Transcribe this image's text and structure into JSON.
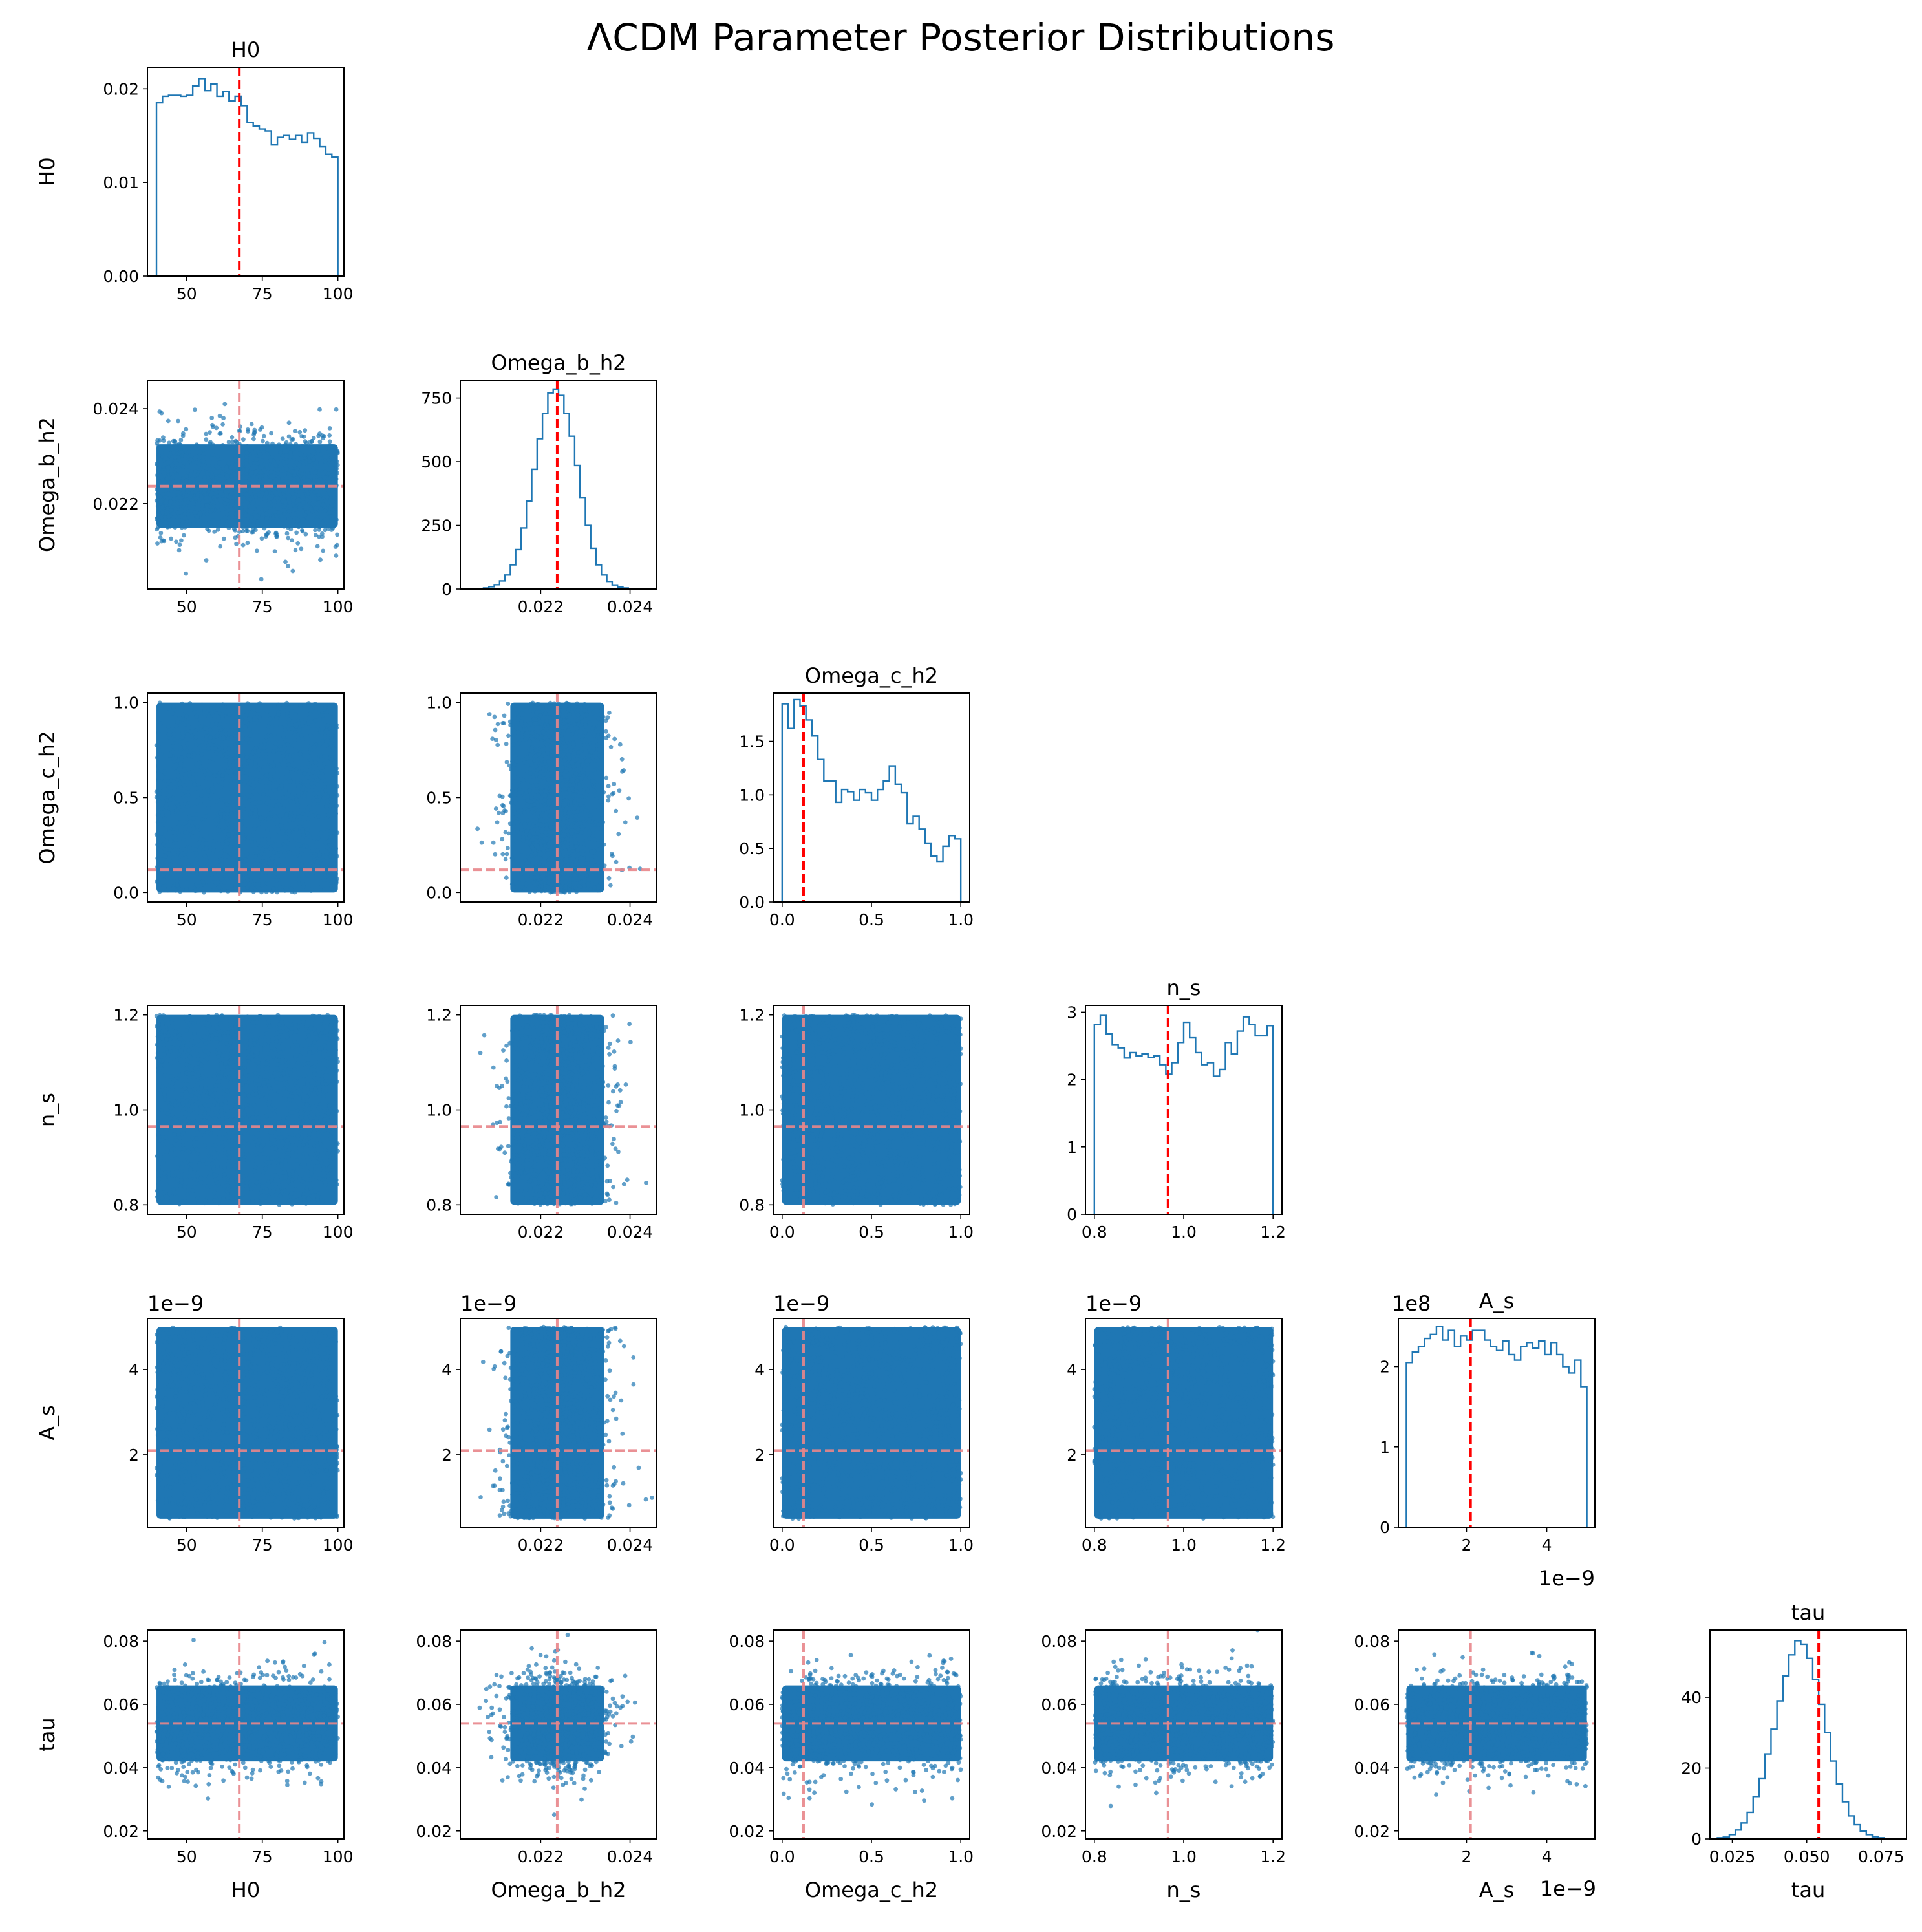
{
  "title": "ΛCDM Parameter Posterior Distributions",
  "colors": {
    "primary": "#1f77b4",
    "reference": "#ff0000",
    "reference_faint": "#e8868a",
    "axes": "#000000",
    "background": "#ffffff"
  },
  "chart_data": {
    "type": "scatter",
    "layout": "corner-plot",
    "title": "ΛCDM Parameter Posterior Distributions",
    "grid": false,
    "parameters": [
      {
        "name": "H0",
        "range": [
          37,
          102
        ],
        "ticks": [
          50,
          75,
          100
        ],
        "tick_labels": [
          "50",
          "75",
          "100"
        ],
        "offset": "",
        "reference": 67.4,
        "sample_range": [
          40,
          100
        ]
      },
      {
        "name": "Omega_b_h2",
        "range": [
          0.0202,
          0.0246
        ],
        "ticks": [
          0.022,
          0.024
        ],
        "tick_labels": [
          "0.022",
          "0.024"
        ],
        "offset": "",
        "reference": 0.02237,
        "sample_range": [
          0.0207,
          0.0241
        ]
      },
      {
        "name": "Omega_c_h2",
        "range": [
          -0.05,
          1.05
        ],
        "ticks": [
          0.0,
          0.5,
          1.0
        ],
        "tick_labels": [
          "0.0",
          "0.5",
          "1.0"
        ],
        "offset": "",
        "reference": 0.12,
        "sample_range": [
          0.0,
          1.0
        ]
      },
      {
        "name": "n_s",
        "range": [
          0.78,
          1.22
        ],
        "ticks": [
          0.8,
          1.0,
          1.2
        ],
        "tick_labels": [
          "0.8",
          "1.0",
          "1.2"
        ],
        "offset": "",
        "reference": 0.965,
        "sample_range": [
          0.8,
          1.2
        ]
      },
      {
        "name": "A_s",
        "range": [
          0.3,
          5.2
        ],
        "ticks": [
          2,
          4
        ],
        "tick_labels": [
          "2",
          "4"
        ],
        "offset": "1e−9",
        "reference": 2.1,
        "sample_range": [
          0.5,
          5.0
        ]
      },
      {
        "name": "tau",
        "range": [
          0.0175,
          0.0835
        ],
        "ticks": [
          0.025,
          0.05,
          0.075
        ],
        "tick_labels": [
          "0.025",
          "0.050",
          "0.075"
        ],
        "y_ticks": [
          0.02,
          0.04,
          0.06,
          0.08
        ],
        "y_tick_labels": [
          "0.02",
          "0.04",
          "0.06",
          "0.08"
        ],
        "offset": "",
        "reference": 0.054,
        "sample_range": [
          0.02,
          0.08
        ]
      }
    ],
    "diagonal_histograms": [
      {
        "parameter": "H0",
        "ylim": [
          0,
          0.0223
        ],
        "yticks": [
          0.0,
          0.01,
          0.02
        ],
        "ytick_labels": [
          "0.00",
          "0.01",
          "0.02"
        ],
        "yoffset": "",
        "edges": [
          40,
          42,
          44,
          46,
          48,
          50,
          52,
          54,
          56,
          58,
          60,
          62,
          64,
          66,
          68,
          70,
          72,
          74,
          76,
          78,
          80,
          82,
          84,
          86,
          88,
          90,
          92,
          94,
          96,
          98,
          100
        ],
        "values": [
          0.0185,
          0.0192,
          0.0193,
          0.0193,
          0.0192,
          0.0193,
          0.0203,
          0.0211,
          0.0198,
          0.0205,
          0.0192,
          0.0197,
          0.0187,
          0.0192,
          0.0182,
          0.0164,
          0.016,
          0.0157,
          0.0155,
          0.014,
          0.0148,
          0.015,
          0.0146,
          0.015,
          0.0143,
          0.0153,
          0.0147,
          0.0138,
          0.013,
          0.0127
        ]
      },
      {
        "parameter": "Omega_b_h2",
        "ylim": [
          0,
          820
        ],
        "yticks": [
          0,
          250,
          500,
          750
        ],
        "ytick_labels": [
          "0",
          "250",
          "500",
          "750"
        ],
        "yoffset": "",
        "edges": [
          0.0206,
          0.02072,
          0.02084,
          0.02096,
          0.02108,
          0.0212,
          0.02132,
          0.02144,
          0.02156,
          0.02168,
          0.0218,
          0.02192,
          0.02204,
          0.02216,
          0.02228,
          0.0224,
          0.02252,
          0.02264,
          0.02276,
          0.02288,
          0.023,
          0.02312,
          0.02324,
          0.02336,
          0.02348,
          0.0236,
          0.02372,
          0.02384,
          0.02396,
          0.02408,
          0.0242
        ],
        "values": [
          2,
          4,
          9,
          17,
          32,
          55,
          95,
          155,
          240,
          345,
          470,
          590,
          690,
          770,
          785,
          760,
          690,
          600,
          485,
          360,
          250,
          160,
          95,
          55,
          30,
          16,
          8,
          4,
          2,
          1
        ]
      },
      {
        "parameter": "Omega_c_h2",
        "ylim": [
          0,
          1.95
        ],
        "yticks": [
          0.0,
          0.5,
          1.0,
          1.5
        ],
        "ytick_labels": [
          "0.0",
          "0.5",
          "1.0",
          "1.5"
        ],
        "yoffset": "",
        "edges": [
          0.0,
          0.03333,
          0.06667,
          0.1,
          0.13333,
          0.16667,
          0.2,
          0.23333,
          0.26667,
          0.3,
          0.33333,
          0.36667,
          0.4,
          0.43333,
          0.46667,
          0.5,
          0.53333,
          0.56667,
          0.6,
          0.63333,
          0.66667,
          0.7,
          0.73333,
          0.76667,
          0.8,
          0.83333,
          0.86667,
          0.9,
          0.93333,
          0.96667,
          1.0
        ],
        "values": [
          1.85,
          1.62,
          1.89,
          1.83,
          1.7,
          1.55,
          1.33,
          1.13,
          1.13,
          0.93,
          1.05,
          1.03,
          0.95,
          1.05,
          1.02,
          0.95,
          1.05,
          1.13,
          1.27,
          1.1,
          1.02,
          0.73,
          0.8,
          0.68,
          0.55,
          0.43,
          0.38,
          0.52,
          0.62,
          0.59
        ]
      },
      {
        "parameter": "n_s",
        "ylim": [
          0,
          3.1
        ],
        "yticks": [
          0,
          1,
          2,
          3
        ],
        "ytick_labels": [
          "0",
          "1",
          "2",
          "3"
        ],
        "yoffset": "",
        "edges": [
          0.8,
          0.81333,
          0.82667,
          0.84,
          0.85333,
          0.86667,
          0.88,
          0.89333,
          0.90667,
          0.92,
          0.93333,
          0.94667,
          0.96,
          0.97333,
          0.98667,
          1.0,
          1.01333,
          1.02667,
          1.04,
          1.05333,
          1.06667,
          1.08,
          1.09333,
          1.10667,
          1.12,
          1.13333,
          1.14667,
          1.16,
          1.17333,
          1.18667,
          1.2
        ],
        "values": [
          2.82,
          2.95,
          2.68,
          2.52,
          2.47,
          2.32,
          2.4,
          2.35,
          2.38,
          2.33,
          2.35,
          2.22,
          2.08,
          2.25,
          2.55,
          2.85,
          2.62,
          2.4,
          2.22,
          2.25,
          2.05,
          2.15,
          2.55,
          2.38,
          2.72,
          2.93,
          2.82,
          2.65,
          2.65,
          2.8
        ]
      },
      {
        "parameter": "A_s",
        "ylim": [
          0,
          2.6
        ],
        "yticks": [
          0,
          1,
          2
        ],
        "ytick_labels": [
          "0",
          "1",
          "2"
        ],
        "yoffset": "1e8",
        "edges": [
          0.5,
          0.65,
          0.8,
          0.95,
          1.1,
          1.25,
          1.4,
          1.55,
          1.7,
          1.85,
          2.0,
          2.15,
          2.3,
          2.45,
          2.6,
          2.75,
          2.9,
          3.05,
          3.2,
          3.35,
          3.5,
          3.65,
          3.8,
          3.95,
          4.1,
          4.25,
          4.4,
          4.55,
          4.7,
          4.85,
          5.0
        ],
        "values": [
          2.05,
          2.18,
          2.25,
          2.35,
          2.4,
          2.5,
          2.33,
          2.45,
          2.25,
          2.38,
          2.33,
          2.45,
          2.45,
          2.33,
          2.25,
          2.2,
          2.32,
          2.15,
          2.08,
          2.25,
          2.3,
          2.23,
          2.32,
          2.15,
          2.3,
          2.15,
          2.0,
          1.92,
          2.08,
          1.75
        ]
      },
      {
        "parameter": "tau",
        "ylim": [
          0,
          59
        ],
        "yticks": [
          0,
          20,
          40
        ],
        "ytick_labels": [
          "0",
          "20",
          "40"
        ],
        "yoffset": "",
        "edges": [
          0.02,
          0.022,
          0.024,
          0.026,
          0.028,
          0.03,
          0.032,
          0.034,
          0.036,
          0.038,
          0.04,
          0.042,
          0.044,
          0.046,
          0.048,
          0.05,
          0.052,
          0.054,
          0.056,
          0.058,
          0.06,
          0.062,
          0.064,
          0.066,
          0.068,
          0.07,
          0.072,
          0.074,
          0.076,
          0.078,
          0.08
        ],
        "values": [
          0.3,
          0.5,
          1.2,
          2.5,
          4.5,
          7.5,
          12,
          17,
          24,
          31,
          39,
          46,
          52,
          56,
          55,
          51,
          45,
          38,
          30,
          22,
          15.5,
          10.5,
          6.5,
          4,
          2.2,
          1.2,
          0.6,
          0.3,
          0.15,
          0.1
        ]
      }
    ],
    "scatter_panels": [
      {
        "x": "H0",
        "y": "Omega_b_h2",
        "points": 40000,
        "distribution": "uniform x, gaussian y"
      },
      {
        "x": "H0",
        "y": "Omega_c_h2",
        "points": 40000,
        "distribution": "uniform"
      },
      {
        "x": "Omega_b_h2",
        "y": "Omega_c_h2",
        "points": 40000,
        "distribution": "gaussian x, uniform y"
      },
      {
        "x": "H0",
        "y": "n_s",
        "points": 40000,
        "distribution": "uniform"
      },
      {
        "x": "Omega_b_h2",
        "y": "n_s",
        "points": 40000,
        "distribution": "gaussian x, uniform y"
      },
      {
        "x": "Omega_c_h2",
        "y": "n_s",
        "points": 40000,
        "distribution": "uniform"
      },
      {
        "x": "H0",
        "y": "A_s",
        "points": 40000,
        "distribution": "uniform"
      },
      {
        "x": "Omega_b_h2",
        "y": "A_s",
        "points": 40000,
        "distribution": "gaussian x, uniform y"
      },
      {
        "x": "Omega_c_h2",
        "y": "A_s",
        "points": 40000,
        "distribution": "uniform"
      },
      {
        "x": "n_s",
        "y": "A_s",
        "points": 40000,
        "distribution": "uniform"
      },
      {
        "x": "H0",
        "y": "tau",
        "points": 40000,
        "distribution": "uniform x, gaussian y"
      },
      {
        "x": "Omega_b_h2",
        "y": "tau",
        "points": 40000,
        "distribution": "gaussian x, gaussian y"
      },
      {
        "x": "Omega_c_h2",
        "y": "tau",
        "points": 40000,
        "distribution": "uniform x, gaussian y"
      },
      {
        "x": "n_s",
        "y": "tau",
        "points": 40000,
        "distribution": "uniform x, gaussian y"
      },
      {
        "x": "A_s",
        "y": "tau",
        "points": 40000,
        "distribution": "uniform x, gaussian y"
      }
    ],
    "row_labels": [
      "H0",
      "Omega_b_h2",
      "Omega_c_h2",
      "n_s",
      "A_s",
      "tau"
    ],
    "column_labels": [
      "H0",
      "Omega_b_h2",
      "Omega_c_h2",
      "n_s",
      "A_s",
      "tau"
    ]
  }
}
